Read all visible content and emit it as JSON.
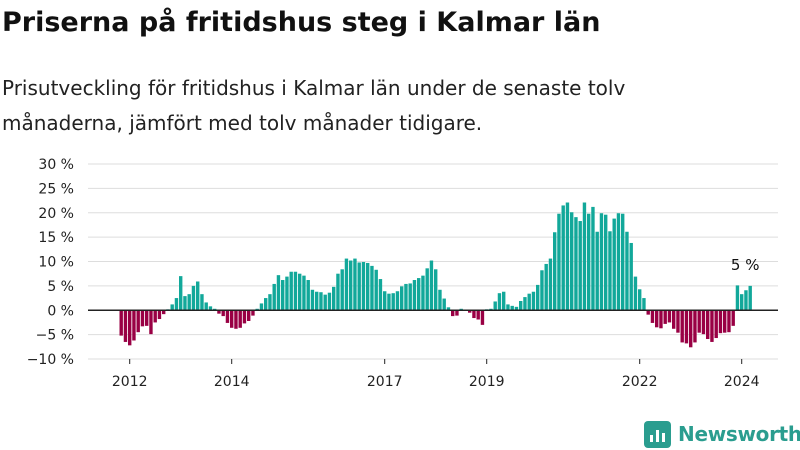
{
  "title": "Priserna på fritidshus steg i Kalmar län",
  "subtitle": "Prisutveckling för fritidshus i Kalmar län under de senaste tolv månaderna, jämfört med tolv månader tidigare.",
  "brand": "Newsworthy",
  "colors": {
    "positive": "#12a89a",
    "negative": "#990044",
    "brand": "#2a9d8f",
    "grid": "#dddddd"
  },
  "chart_data": {
    "type": "bar",
    "title": "",
    "xlabel": "",
    "ylabel": "",
    "ylim": [
      -10,
      30
    ],
    "y_ticks": [
      30,
      25,
      20,
      15,
      10,
      5,
      0,
      -5,
      -10
    ],
    "y_tick_labels": [
      "30 %",
      "25 %",
      "20 %",
      "15 %",
      "10 %",
      "5 %",
      "0 %",
      "−5 %",
      "−10 %"
    ],
    "x_ticks": [
      "2012",
      "2014",
      "2017",
      "2019",
      "2022",
      "2024"
    ],
    "start": "2011-11",
    "annotation": "5 %",
    "grid": true,
    "values": [
      -5.2,
      -6.5,
      -7.2,
      -6.2,
      -4.5,
      -3.3,
      -3.2,
      -4.9,
      -2.5,
      -1.8,
      -0.8,
      0.2,
      1.2,
      2.5,
      7,
      2.9,
      3.3,
      5,
      5.9,
      3.3,
      1.6,
      0.8,
      0.3,
      -0.7,
      -1.2,
      -2.6,
      -3.6,
      -3.8,
      -3.6,
      -2.7,
      -2.2,
      -1.1,
      0.3,
      1.4,
      2.5,
      3.3,
      5.4,
      7.2,
      6.2,
      6.9,
      7.9,
      7.9,
      7.5,
      7.1,
      6.2,
      4.2,
      3.8,
      3.7,
      3.2,
      3.6,
      4.8,
      7.5,
      8.4,
      10.6,
      10.2,
      10.6,
      9.8,
      9.9,
      9.7,
      9.1,
      8.3,
      6.4,
      3.9,
      3.4,
      3.5,
      3.9,
      4.9,
      5.4,
      5.5,
      6.2,
      6.6,
      7.1,
      8.6,
      10.2,
      8.4,
      4.2,
      2.4,
      0.6,
      -1.2,
      -1.1,
      0.3,
      -0.1,
      -0.5,
      -1.6,
      -1.9,
      -3.0,
      0.2,
      0.3,
      1.8,
      3.5,
      3.8,
      1.2,
      0.9,
      0.7,
      1.9,
      2.7,
      3.4,
      3.8,
      5.2,
      8.2,
      9.5,
      10.6,
      16,
      19.8,
      21.5,
      22.1,
      20.1,
      19.1,
      18.3,
      22.1,
      19.8,
      21.2,
      16.1,
      19.9,
      19.6,
      16.2,
      18.8,
      19.9,
      19.8,
      16.1,
      13.8,
      6.9,
      4.3,
      2.5,
      -0.9,
      -2.6,
      -3.5,
      -3.7,
      -2.8,
      -2.5,
      -3.8,
      -4.6,
      -6.6,
      -6.8,
      -7.6,
      -6.6,
      -4.6,
      -4.9,
      -5.9,
      -6.5,
      -5.7,
      -4.7,
      -4.6,
      -4.5,
      -3.2,
      5.1,
      3.3,
      4.1,
      5.0
    ]
  }
}
